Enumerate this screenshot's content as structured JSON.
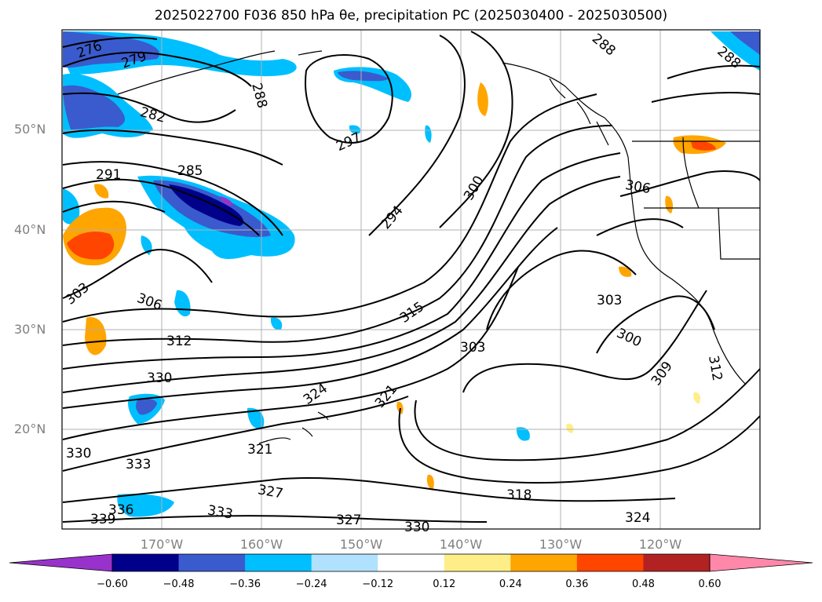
{
  "title": "2025022700 F036 850 hPa θe, precipitation PC (2025030400 - 2025030500)",
  "map": {
    "region": "North Pacific",
    "lat_range": [
      10,
      60
    ],
    "lon_range": [
      -180,
      -110
    ],
    "lat_labels": [
      "20°N",
      "30°N",
      "40°N",
      "50°N"
    ],
    "lon_labels": [
      "170°W",
      "160°W",
      "150°W",
      "140°W",
      "130°W",
      "120°W"
    ],
    "grid": true,
    "theta_e_contour_labels": [
      "276",
      "279",
      "282",
      "285",
      "288",
      "291",
      "294",
      "297",
      "300",
      "303",
      "306",
      "309",
      "312",
      "315",
      "318",
      "321",
      "324",
      "327",
      "330",
      "333",
      "336",
      "339"
    ]
  },
  "colorbar": {
    "ticks": [
      "−0.60",
      "−0.48",
      "−0.36",
      "−0.24",
      "−0.12",
      "0.12",
      "0.24",
      "0.36",
      "0.48",
      "0.60"
    ],
    "colors": [
      "#9932cc",
      "#00008b",
      "#3a5bcd",
      "#00bfff",
      "#b0e2ff",
      "#ffffff",
      "#ffee88",
      "#ffa500",
      "#ff4500",
      "#b22222",
      "#ff88aa"
    ]
  }
}
